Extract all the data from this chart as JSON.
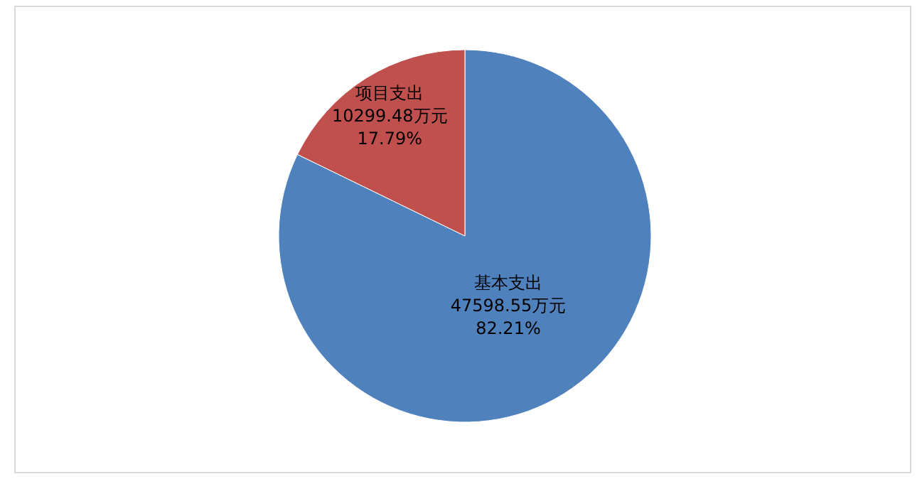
{
  "chart_data": {
    "type": "pie",
    "categories": [
      "基本支出",
      "项目支出"
    ],
    "values": [
      47598.55,
      10299.48
    ],
    "colors": [
      "#4f81bd",
      "#c0504d"
    ],
    "value_labels": [
      "47598.55万元 82.21%",
      "10299.48万元 17.79%"
    ]
  }
}
